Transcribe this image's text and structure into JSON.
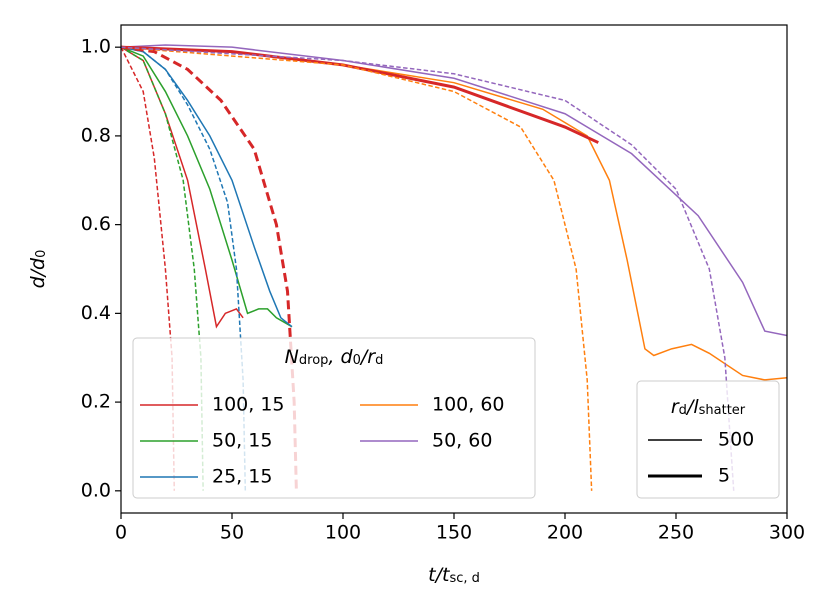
{
  "chart_data": {
    "type": "line",
    "xlabel": [
      {
        "text": "t/t"
      },
      {
        "text": "sc, d",
        "sub": true
      }
    ],
    "ylabel": [
      {
        "text": "d/d"
      },
      {
        "text": "0",
        "sub": true
      }
    ],
    "xlim": [
      0,
      300
    ],
    "ylim": [
      -0.05,
      1.05
    ],
    "xticks": [
      0,
      50,
      100,
      150,
      200,
      250,
      300
    ],
    "yticks": [
      {
        "value": 0,
        "label": "0.0"
      },
      {
        "value": 0.2,
        "label": "0.2"
      },
      {
        "value": 0.4,
        "label": "0.4"
      },
      {
        "value": 0.6,
        "label": "0.6"
      },
      {
        "value": 0.8,
        "label": "0.8"
      },
      {
        "value": 1,
        "label": "1.0"
      }
    ],
    "series": [
      {
        "name": "100, 15",
        "color": "#d62728",
        "linewidth": 1.5,
        "dashed": false,
        "x": [
          0,
          10,
          20,
          30,
          38,
          43,
          47,
          52,
          55
        ],
        "values": [
          1,
          0.97,
          0.85,
          0.7,
          0.5,
          0.37,
          0.4,
          0.41,
          0.39
        ]
      },
      {
        "name": "50, 15",
        "color": "#2ca02c",
        "linewidth": 1.5,
        "dashed": false,
        "x": [
          0,
          10,
          20,
          30,
          40,
          50,
          57,
          62,
          66,
          70,
          77
        ],
        "values": [
          1,
          0.98,
          0.9,
          0.8,
          0.68,
          0.52,
          0.4,
          0.41,
          0.41,
          0.39,
          0.37
        ]
      },
      {
        "name": "25, 15",
        "color": "#1f77b4",
        "linewidth": 1.5,
        "dashed": false,
        "x": [
          0,
          10,
          20,
          30,
          40,
          50,
          60,
          67,
          72,
          77
        ],
        "values": [
          1,
          0.99,
          0.95,
          0.88,
          0.8,
          0.7,
          0.55,
          0.45,
          0.39,
          0.37
        ]
      },
      {
        "name": "100, 60",
        "color": "#ff7f0e",
        "linewidth": 1.5,
        "dashed": false,
        "x": [
          0,
          50,
          100,
          150,
          190,
          210,
          220,
          228,
          236,
          240,
          248,
          257,
          265,
          280,
          290,
          300
        ],
        "values": [
          1,
          0.99,
          0.96,
          0.92,
          0.86,
          0.8,
          0.7,
          0.52,
          0.32,
          0.305,
          0.32,
          0.33,
          0.31,
          0.26,
          0.25,
          0.255
        ]
      },
      {
        "name": "50, 60",
        "color": "#9467bd",
        "linewidth": 1.5,
        "dashed": false,
        "x": [
          0,
          20,
          50,
          100,
          150,
          200,
          230,
          260,
          280,
          290,
          300
        ],
        "values": [
          1,
          1.005,
          1,
          0.97,
          0.93,
          0.85,
          0.76,
          0.62,
          0.47,
          0.36,
          0.35
        ]
      },
      {
        "color": "#d62728",
        "linewidth": 1.5,
        "dashed": true,
        "x": [
          0,
          10,
          15,
          20,
          23,
          24
        ],
        "values": [
          1,
          0.9,
          0.75,
          0.5,
          0.3,
          0
        ]
      },
      {
        "color": "#2ca02c",
        "linewidth": 1.5,
        "dashed": true,
        "x": [
          0,
          10,
          20,
          28,
          33,
          36,
          37
        ],
        "values": [
          1,
          0.97,
          0.85,
          0.7,
          0.5,
          0.3,
          0
        ]
      },
      {
        "color": "#1f77b4",
        "linewidth": 1.5,
        "dashed": true,
        "x": [
          0,
          10,
          20,
          30,
          40,
          48,
          52,
          55,
          56
        ],
        "values": [
          1,
          0.99,
          0.95,
          0.87,
          0.77,
          0.65,
          0.5,
          0.25,
          0
        ]
      },
      {
        "color": "#d62728",
        "linewidth": 3,
        "dashed": true,
        "x": [
          0,
          15,
          30,
          45,
          60,
          70,
          75,
          78,
          79
        ],
        "values": [
          1,
          0.99,
          0.95,
          0.88,
          0.77,
          0.6,
          0.45,
          0.2,
          0
        ]
      },
      {
        "color": "#d62728",
        "linewidth": 3,
        "dashed": false,
        "x": [
          0,
          50,
          100,
          150,
          200,
          215
        ],
        "values": [
          1,
          0.99,
          0.96,
          0.91,
          0.82,
          0.785
        ]
      },
      {
        "color": "#ff7f0e",
        "linewidth": 1.5,
        "dashed": true,
        "x": [
          0,
          100,
          150,
          180,
          195,
          205,
          210,
          212
        ],
        "values": [
          1,
          0.96,
          0.9,
          0.82,
          0.7,
          0.5,
          0.25,
          0
        ]
      },
      {
        "color": "#9467bd",
        "linewidth": 1.5,
        "dashed": true,
        "x": [
          0,
          100,
          150,
          200,
          230,
          250,
          265,
          272,
          276
        ],
        "values": [
          1,
          0.97,
          0.94,
          0.88,
          0.78,
          0.68,
          0.5,
          0.3,
          0
        ]
      }
    ],
    "legend_title": [
      {
        "text": "N"
      },
      {
        "text": "drop",
        "sub": true
      },
      {
        "text": ", d"
      },
      {
        "text": "0",
        "sub": true
      },
      {
        "text": "/r"
      },
      {
        "text": "d",
        "sub": true
      }
    ],
    "style_legend": {
      "title": [
        {
          "text": "r"
        },
        {
          "text": "d",
          "sub": true
        },
        {
          "text": "/l"
        },
        {
          "text": "shatter",
          "sub": true
        }
      ],
      "entries": [
        {
          "label": "500",
          "linewidth": 1.5
        },
        {
          "label": "5",
          "linewidth": 3
        }
      ]
    }
  }
}
